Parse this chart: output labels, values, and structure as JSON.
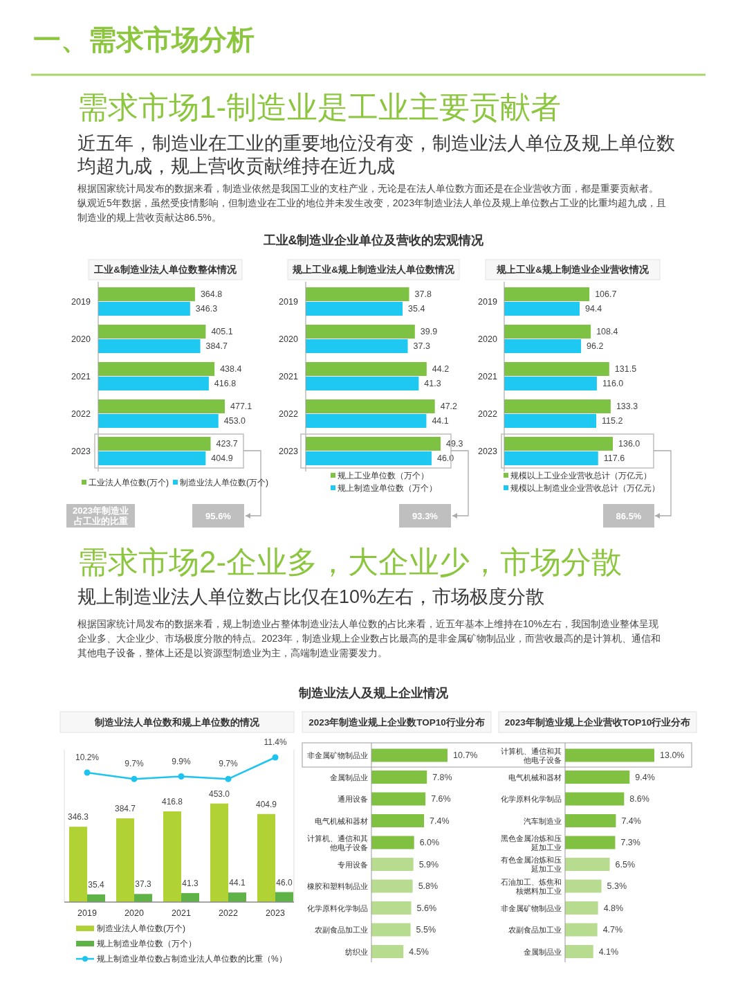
{
  "chart_data": [
    {
      "type": "bar",
      "orientation": "horizontal",
      "title": "工业&制造业法人单位数整体情况",
      "categories": [
        "2019",
        "2020",
        "2021",
        "2022",
        "2023"
      ],
      "series": [
        {
          "name": "工业法人单位数(万个)",
          "color": "#7dc242",
          "values": [
            364.8,
            405.1,
            438.4,
            477.1,
            423.7
          ],
          "value_labels": [
            "364.8",
            "405.1",
            "438.4",
            "477.1",
            "423.7"
          ]
        },
        {
          "name": "制造业法人单位数(万个)",
          "color": "#1ec8f0",
          "values": [
            346.3,
            384.7,
            416.8,
            453.0,
            404.9
          ],
          "value_labels": [
            "346.3",
            "384.7",
            "416.8",
            "453.0",
            "404.9"
          ]
        }
      ],
      "legend": "bottom",
      "annotations": [
        "一、需求市场分析",
        "需求市场1-制造业是工业主要贡献者",
        "近五年，制造业在工业的重要地位没有变，制造业法人单位及规上单位数均超九成，规上营收贡献维持在近九成",
        "根据国家统计局发布的数据来看，制造业依然是我国工业的支柱产业，无论是在法人单位数方面还是在企业营收方面，都是重要贡献者。纵观近5年数据，虽然受疫情影响，但制造业在工业的地位并未发生改变，2023年制造业法人单位及规上单位数占工业的比重均超九成，且制造业的规上营收贡献达86.5%。",
        "工业&制造业企业单位及营收的宏观情况",
        "2023年制造业占工业的比重",
        "95.6%"
      ]
    },
    {
      "type": "bar",
      "orientation": "horizontal",
      "title": "规上工业&规上制造业法人单位数情况",
      "categories": [
        "2019",
        "2020",
        "2021",
        "2022",
        "2023"
      ],
      "series": [
        {
          "name": "规上工业单位数（万个）",
          "color": "#7dc242",
          "values": [
            37.8,
            39.9,
            44.2,
            47.2,
            49.3
          ],
          "value_labels": [
            "37.8",
            "39.9",
            "44.2",
            "47.2",
            "49.3"
          ]
        },
        {
          "name": "规上制造业单位数（万个）",
          "color": "#1ec8f0",
          "values": [
            35.4,
            37.3,
            41.3,
            44.1,
            46.0
          ],
          "value_labels": [
            "35.4",
            "37.3",
            "41.3",
            "44.1",
            "46.0"
          ]
        }
      ],
      "legend": "bottom",
      "annotations": [
        "93.3%"
      ]
    },
    {
      "type": "bar",
      "orientation": "horizontal",
      "title": "规上工业&规上制造业企业营收情况",
      "categories": [
        "2019",
        "2020",
        "2021",
        "2022",
        "2023"
      ],
      "series": [
        {
          "name": "规模以上工业企业营收总计（万亿元）",
          "color": "#7dc242",
          "values": [
            106.7,
            108.4,
            131.5,
            133.3,
            136.0
          ],
          "value_labels": [
            "106.7",
            "108.4",
            "131.5",
            "133.3",
            "136.0"
          ]
        },
        {
          "name": "规模以上制造业企业营收总计（万亿元）",
          "color": "#1ec8f0",
          "values": [
            94.4,
            96.2,
            116.0,
            115.2,
            117.6
          ],
          "value_labels": [
            "94.4",
            "96.2",
            "116.0",
            "115.2",
            "117.6"
          ]
        }
      ],
      "legend": "bottom",
      "annotations": [
        "86.5%"
      ]
    },
    {
      "type": "bar",
      "title": "制造业法人单位数和规上单位数的情况",
      "ylim": [
        0,
        700
      ],
      "y2lim": [
        0,
        12
      ],
      "tick_labels": false,
      "categories": [
        "2019",
        "2020",
        "2021",
        "2022",
        "2023"
      ],
      "series": [
        {
          "name": "制造业法人单位数(万个)",
          "color": "#b1d235",
          "values": [
            346.3,
            384.7,
            416.8,
            453.0,
            404.9
          ],
          "value_labels": [
            "346.3",
            "384.7",
            "416.8",
            "453.0",
            "404.9"
          ]
        },
        {
          "name": "规上制造业单位数（万个）",
          "color": "#5fb346",
          "values": [
            35.4,
            37.3,
            41.3,
            44.1,
            46.0
          ],
          "value_labels": [
            "35.4",
            "37.3",
            "41.3",
            "44.1",
            "46.0"
          ]
        },
        {
          "name": "规上制造业单位数占制造业法人单位数的比重（%）",
          "type": "line",
          "axis": "y2",
          "marker": "circle",
          "color": "#1ec3ef",
          "values": [
            10.2,
            9.7,
            9.9,
            9.7,
            11.4
          ],
          "value_labels": [
            "10.2%",
            "9.7%",
            "9.9%",
            "9.7%",
            "11.4%"
          ]
        }
      ],
      "legend": "bottom",
      "annotations": [
        "需求市场2-企业多，大企业少，市场分散",
        "规上制造业法人单位数占比仅在10%左右，市场极度分散",
        "根据国家统计局发布的数据来看，规上制造业占整体制造业法人单位数的占比来看，近五年基本上维持在10%左右，我国制造业整体呈现企业多、大企业少、市场极度分散的特点。2023年，制造业规上企业数占比最高的是非金属矿物制品业，而营收最高的是计算机、通信和其他电子设备，整体上还是以资源型制造业为主，高端制造业需要发力。",
        "制造业法人及规上企业情况"
      ]
    },
    {
      "type": "bar",
      "orientation": "horizontal",
      "title": "2023年制造业规上企业数TOP10行业分布",
      "categories": [
        "非金属矿物制品业",
        "金属制品业",
        "通用设备",
        "电气机械和器材",
        "计算机、通信和其他电子设备",
        "专用设备",
        "橡胶和塑料制品业",
        "化学原料化学制品",
        "农副食品加工业",
        "纺织业"
      ],
      "values": [
        10.7,
        7.8,
        7.6,
        7.4,
        6.0,
        5.9,
        5.8,
        5.6,
        5.5,
        4.5
      ],
      "value_labels": [
        "10.7%",
        "7.8%",
        "7.6%",
        "7.4%",
        "6.0%",
        "5.9%",
        "5.8%",
        "5.6%",
        "5.5%",
        "4.5%"
      ],
      "colors": [
        "#80c142",
        "#80c142",
        "#80c142",
        "#80c142",
        "#80c142",
        "#b7dc8f",
        "#b7dc8f",
        "#b7dc8f",
        "#b7dc8f",
        "#b7dc8f"
      ]
    },
    {
      "type": "bar",
      "orientation": "horizontal",
      "title": "2023年制造业规上企业营收TOP10行业分布",
      "categories": [
        "计算机、通信和其他电子设备",
        "电气机械和器材",
        "化学原料化学制品",
        "汽车制造业",
        "黑色金属冶炼和压延加工业",
        "有色金属冶炼和压延加工业",
        "石油加工、炼焦和核燃料加工业",
        "非金属矿物制品业",
        "农副食品加工业",
        "金属制品业"
      ],
      "values": [
        13.0,
        9.4,
        8.6,
        7.4,
        7.3,
        6.5,
        5.3,
        4.8,
        4.7,
        4.1
      ],
      "value_labels": [
        "13.0%",
        "9.4%",
        "8.6%",
        "7.4%",
        "7.3%",
        "6.5%",
        "5.3%",
        "4.8%",
        "4.7%",
        "4.1%"
      ],
      "colors": [
        "#80c142",
        "#80c142",
        "#80c142",
        "#80c142",
        "#80c142",
        "#b7dc8f",
        "#b7dc8f",
        "#b7dc8f",
        "#b7dc8f",
        "#b7dc8f"
      ]
    }
  ]
}
